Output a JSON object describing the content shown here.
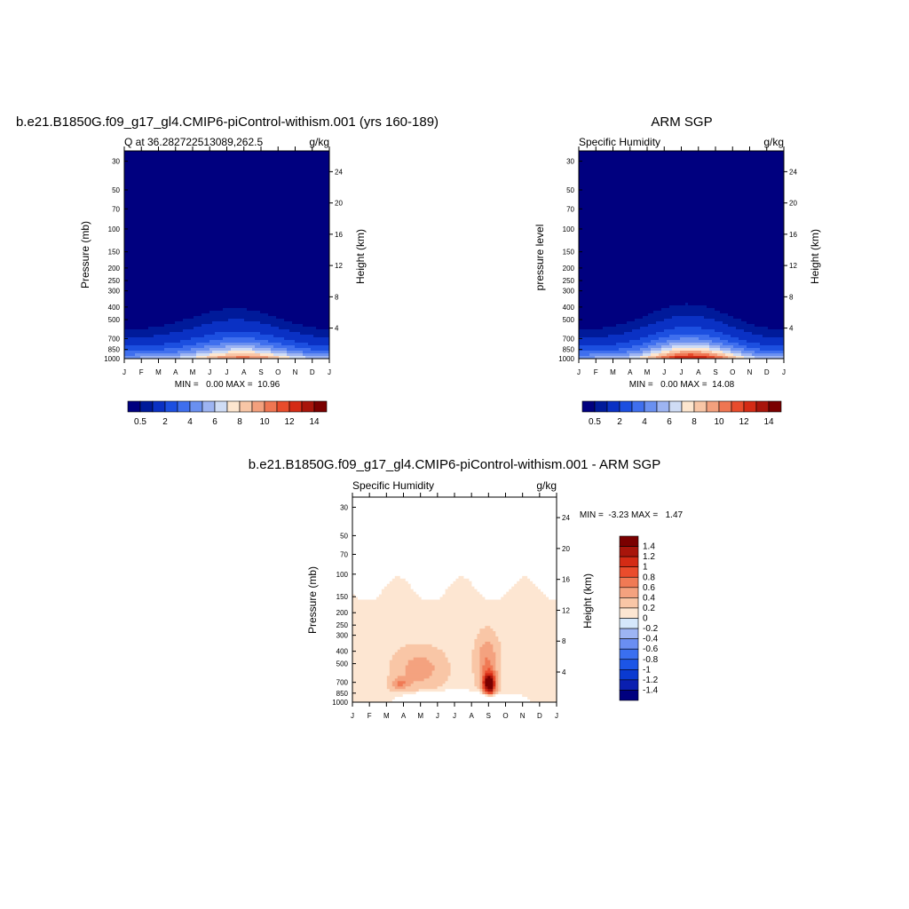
{
  "colors": {
    "humidity_scale": [
      "#00007f",
      "#001a9a",
      "#0a31c4",
      "#1c4fe0",
      "#3f6fee",
      "#6a90f0",
      "#9db4f2",
      "#cfdcf5",
      "#fde6cf",
      "#f8c6a6",
      "#f3a07d",
      "#ef7652",
      "#e84c2c",
      "#d42b15",
      "#a8150b",
      "#7a0000"
    ],
    "diff_scale": [
      "#00007f",
      "#0a1fb0",
      "#0a3ad0",
      "#1c55e6",
      "#3a6ff0",
      "#6a8ef2",
      "#9db4f3",
      "#d5e7fb",
      "#fde6d2",
      "#f9c6a6",
      "#f4a27f",
      "#f07a55",
      "#ea4c2c",
      "#d42b15",
      "#a8150b",
      "#7a0000"
    ]
  },
  "chart_data": [
    {
      "id": "model",
      "type": "heatmap",
      "title": "b.e21.B1850G.f09_g17_gl4.CMIP6-piControl-withism.001 (yrs 160-189)",
      "left_string": "Q at 36.282722513089,262.5",
      "right_string": "g/kg",
      "ylabel": "Pressure (mb)",
      "y2label": "Height (km)",
      "x_tick_labels": [
        "J",
        "F",
        "M",
        "A",
        "M",
        "J",
        "J",
        "A",
        "S",
        "O",
        "N",
        "D",
        "J"
      ],
      "y_ticks": [
        30,
        50,
        70,
        100,
        150,
        200,
        250,
        300,
        400,
        500,
        700,
        850,
        1000
      ],
      "y_range": [
        25,
        1000
      ],
      "height_ticks": [
        4,
        8,
        12,
        16,
        20,
        24
      ],
      "min_text": "MIN =   0.00 MAX =  10.96",
      "min": 0.0,
      "max": 10.96,
      "levels": [
        0.5,
        1,
        2,
        3,
        4,
        5,
        6,
        7,
        8,
        9,
        10,
        11,
        12,
        13,
        14
      ],
      "colorbar_labels": [
        "0.5",
        "2",
        "4",
        "6",
        "8",
        "10",
        "12",
        "14"
      ],
      "colorbar_label_index": [
        0,
        2,
        4,
        6,
        8,
        10,
        12,
        14
      ]
    },
    {
      "id": "obs",
      "type": "heatmap",
      "title": "ARM SGP",
      "left_string": "Specific Humidity",
      "right_string": "g/kg",
      "ylabel": "pressure level",
      "y2label": "Height (km)",
      "x_tick_labels": [
        "J",
        "F",
        "M",
        "A",
        "M",
        "J",
        "J",
        "A",
        "S",
        "O",
        "N",
        "D",
        "J"
      ],
      "y_ticks": [
        30,
        50,
        70,
        100,
        150,
        200,
        250,
        300,
        400,
        500,
        700,
        850,
        1000
      ],
      "y_range": [
        25,
        1000
      ],
      "height_ticks": [
        4,
        8,
        12,
        16,
        20,
        24
      ],
      "min_text": "MIN =   0.00 MAX =  14.08",
      "min": 0.0,
      "max": 14.08,
      "levels": [
        0.5,
        1,
        2,
        3,
        4,
        5,
        6,
        7,
        8,
        9,
        10,
        11,
        12,
        13,
        14
      ],
      "colorbar_labels": [
        "0.5",
        "2",
        "4",
        "6",
        "8",
        "10",
        "12",
        "14"
      ],
      "colorbar_label_index": [
        0,
        2,
        4,
        6,
        8,
        10,
        12,
        14
      ]
    },
    {
      "id": "diff",
      "type": "heatmap",
      "title": "b.e21.B1850G.f09_g17_gl4.CMIP6-piControl-withism.001 - ARM SGP",
      "left_string": "Specific Humidity",
      "right_string": "g/kg",
      "ylabel": "Pressure (mb)",
      "y2label": "Height (km)",
      "x_tick_labels": [
        "J",
        "F",
        "M",
        "A",
        "M",
        "J",
        "J",
        "A",
        "S",
        "O",
        "N",
        "D",
        "J"
      ],
      "y_ticks": [
        30,
        50,
        70,
        100,
        150,
        200,
        250,
        300,
        400,
        500,
        700,
        850,
        1000
      ],
      "y_range": [
        25,
        1000
      ],
      "height_ticks": [
        4,
        8,
        12,
        16,
        20,
        24
      ],
      "min_text": "MIN =  -3.23 MAX =   1.47",
      "min": -3.23,
      "max": 1.47,
      "levels": [
        -1.4,
        -1.2,
        -1,
        -0.8,
        -0.6,
        -0.4,
        -0.2,
        0,
        0.2,
        0.4,
        0.6,
        0.8,
        1,
        1.2,
        1.4
      ],
      "colorbar_labels": [
        "1.4",
        "1.2",
        "1",
        "0.8",
        "0.6",
        "0.4",
        "0.2",
        "0",
        "-0.2",
        "-0.4",
        "-0.6",
        "-0.8",
        "-1",
        "-1.2",
        "-1.4"
      ]
    }
  ]
}
